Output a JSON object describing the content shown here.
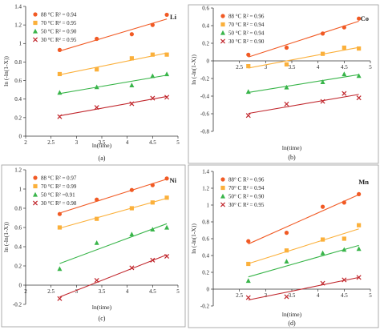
{
  "chart_data": [
    {
      "type": "scatter",
      "element": "Li",
      "panel_label": "(a)",
      "xlabel": "ln(time)",
      "ylabel": "ln (-ln(1-X))",
      "xlim": [
        2,
        5
      ],
      "ylim": [
        0,
        1.4
      ],
      "xticks": [
        2,
        2.5,
        3,
        3.5,
        4,
        4.5,
        5
      ],
      "yticks": [
        0,
        0.2,
        0.4,
        0.6,
        0.8,
        1,
        1.2,
        1.4
      ],
      "legend_position": "top-left",
      "series": [
        {
          "name": "88 °C R² = 0.94",
          "marker": "circle",
          "color": "#f15a24",
          "x": [
            2.67,
            3.4,
            4.09,
            4.5,
            4.78
          ],
          "y": [
            0.93,
            1.05,
            1.1,
            1.2,
            1.31
          ]
        },
        {
          "name": "70 °C R² = 0.95",
          "marker": "square",
          "color": "#fbb03b",
          "x": [
            2.67,
            3.4,
            4.09,
            4.5,
            4.78
          ],
          "y": [
            0.67,
            0.72,
            0.84,
            0.88,
            0.88
          ]
        },
        {
          "name": "50 °C R² = 0.90",
          "marker": "triangle",
          "color": "#39b54a",
          "x": [
            2.67,
            3.4,
            4.09,
            4.5,
            4.78
          ],
          "y": [
            0.47,
            0.53,
            0.55,
            0.65,
            0.67
          ]
        },
        {
          "name": "30 °C R² = 0.95",
          "marker": "x",
          "color": "#c1272d",
          "x": [
            2.67,
            3.4,
            4.09,
            4.5,
            4.78
          ],
          "y": [
            0.21,
            0.31,
            0.35,
            0.41,
            0.42
          ]
        }
      ]
    },
    {
      "type": "scatter",
      "element": "Co",
      "panel_label": "(b)",
      "xlabel": "ln(time)",
      "ylabel": "ln (-ln(1-X))",
      "xlim": [
        2,
        5
      ],
      "ylim": [
        -0.8,
        0.6
      ],
      "xticks": [
        2.5,
        3,
        3.5,
        4,
        4.5,
        5
      ],
      "yticks": [
        -0.8,
        -0.6,
        -0.4,
        -0.2,
        0,
        0.2,
        0.4,
        0.6
      ],
      "legend_position": "top-left",
      "series": [
        {
          "name": "88 °C R² = 0.96",
          "marker": "circle",
          "color": "#f15a24",
          "x": [
            2.67,
            3.4,
            4.09,
            4.5,
            4.78
          ],
          "y": [
            0.07,
            0.15,
            0.31,
            0.38,
            0.48
          ]
        },
        {
          "name": "70 °C R² = 0.94",
          "marker": "square",
          "color": "#fbb03b",
          "x": [
            2.67,
            3.4,
            4.09,
            4.5,
            4.78
          ],
          "y": [
            -0.06,
            -0.04,
            0.08,
            0.15,
            0.14
          ]
        },
        {
          "name": "50 °C R² = 0.94",
          "marker": "triangle",
          "color": "#39b54a",
          "x": [
            2.67,
            3.4,
            4.09,
            4.5,
            4.78
          ],
          "y": [
            -0.35,
            -0.3,
            -0.24,
            -0.15,
            -0.17
          ]
        },
        {
          "name": "30 °C R² = 0.90",
          "marker": "x",
          "color": "#c1272d",
          "x": [
            2.67,
            3.4,
            4.09,
            4.5,
            4.78
          ],
          "y": [
            -0.62,
            -0.49,
            -0.46,
            -0.37,
            -0.42
          ]
        }
      ]
    },
    {
      "type": "scatter",
      "element": "Ni",
      "panel_label": "(c)",
      "xlabel": "ln(time)",
      "ylabel": "ln (-ln(1-X))",
      "xlim": [
        2,
        5
      ],
      "ylim": [
        -0.2,
        1.2
      ],
      "xticks": [
        2,
        2.5,
        3,
        3.5,
        4,
        4.5,
        5
      ],
      "yticks": [
        -0.2,
        0,
        0.2,
        0.4,
        0.6,
        0.8,
        1,
        1.2
      ],
      "legend_position": "top-left",
      "series": [
        {
          "name": "88 °C R² = 0.97",
          "marker": "circle",
          "color": "#f15a24",
          "x": [
            2.67,
            3.4,
            4.09,
            4.5,
            4.78
          ],
          "y": [
            0.74,
            0.89,
            0.99,
            1.04,
            1.11
          ]
        },
        {
          "name": "70 °C R² = 0.99",
          "marker": "square",
          "color": "#fbb03b",
          "x": [
            2.67,
            3.4,
            4.09,
            4.5,
            4.78
          ],
          "y": [
            0.6,
            0.69,
            0.8,
            0.86,
            0.91
          ]
        },
        {
          "name": "50 °C R² =0.91",
          "marker": "triangle",
          "color": "#39b54a",
          "x": [
            2.67,
            3.4,
            4.09,
            4.5,
            4.78
          ],
          "y": [
            0.17,
            0.44,
            0.53,
            0.58,
            0.6
          ]
        },
        {
          "name": "30 °C R² = 0.98",
          "marker": "x",
          "color": "#c1272d",
          "x": [
            2.67,
            3.4,
            4.09,
            4.5,
            4.78
          ],
          "y": [
            -0.14,
            0.05,
            0.18,
            0.26,
            0.3
          ]
        }
      ]
    },
    {
      "type": "scatter",
      "element": "Mn",
      "panel_label": "(d)",
      "xlabel": "ln(time)",
      "ylabel": "ln (-ln(1-X))",
      "xlim": [
        2,
        5
      ],
      "ylim": [
        -0.2,
        1.4
      ],
      "xticks": [
        2.5,
        3,
        3.5,
        4,
        4.5,
        5
      ],
      "yticks": [
        -0.2,
        0,
        0.2,
        0.4,
        0.6,
        0.8,
        1,
        1.2,
        1.4
      ],
      "legend_position": "top-left",
      "series": [
        {
          "name": "88° C R² = 0.96",
          "marker": "circle",
          "color": "#f15a24",
          "x": [
            2.67,
            3.4,
            4.09,
            4.5,
            4.78
          ],
          "y": [
            0.57,
            0.67,
            0.98,
            1.03,
            1.13
          ]
        },
        {
          "name": "70° C R² = 0.94",
          "marker": "square",
          "color": "#fbb03b",
          "x": [
            2.67,
            3.4,
            4.09,
            4.5,
            4.78
          ],
          "y": [
            0.3,
            0.46,
            0.59,
            0.6,
            0.76
          ]
        },
        {
          "name": "50° C R² = 0.90",
          "marker": "triangle",
          "color": "#39b54a",
          "x": [
            2.67,
            3.4,
            4.09,
            4.5,
            4.78
          ],
          "y": [
            0.1,
            0.33,
            0.43,
            0.47,
            0.48
          ]
        },
        {
          "name": "30° C R² = 0.95",
          "marker": "x",
          "color": "#c1272d",
          "x": [
            2.67,
            3.4,
            4.09,
            4.5,
            4.78
          ],
          "y": [
            -0.1,
            -0.09,
            0.07,
            0.11,
            0.14
          ]
        }
      ]
    }
  ]
}
